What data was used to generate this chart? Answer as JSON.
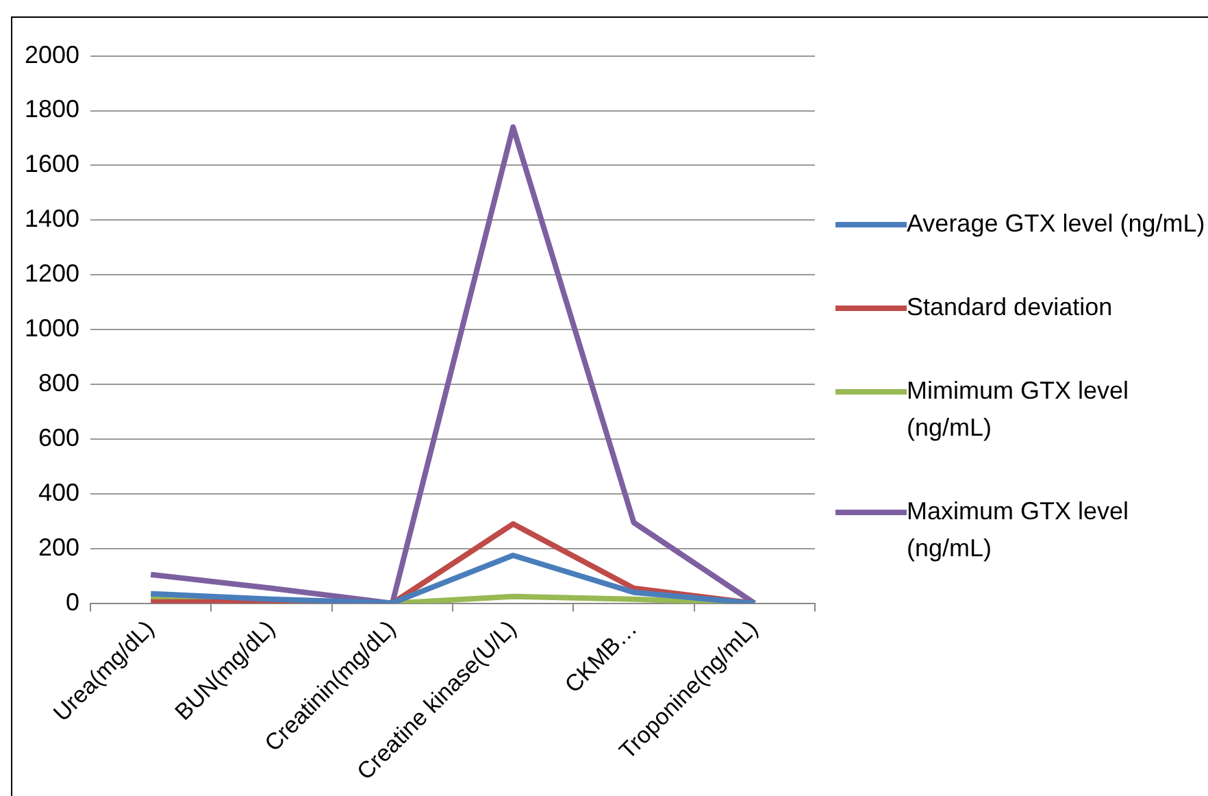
{
  "chart_data": {
    "type": "line",
    "categories": [
      "Urea(mg/dL)",
      "BUN(mg/dL)",
      "Creatinin(mg/dL)",
      "Creatine kinase(U/L)",
      "CKMB…",
      "Troponine(ng/mL)"
    ],
    "series": [
      {
        "name": "Average GTX level (ng/mL)",
        "color": "#4a7ebb",
        "values": [
          35,
          15,
          1,
          175,
          40,
          0
        ]
      },
      {
        "name": "Standard deviation",
        "color": "#be4b48",
        "values": [
          5,
          5,
          0,
          290,
          55,
          0
        ]
      },
      {
        "name": "Mimimum GTX level (ng/mL)",
        "color": "#98b954",
        "values": [
          20,
          10,
          0,
          25,
          15,
          0
        ]
      },
      {
        "name": "Maximum GTX level (ng/mL)",
        "color": "#7d60a0",
        "values": [
          105,
          55,
          0,
          1740,
          295,
          0
        ]
      }
    ],
    "ylim": [
      0,
      2000
    ],
    "yticks": [
      0,
      200,
      400,
      600,
      800,
      1000,
      1200,
      1400,
      1600,
      1800,
      2000
    ],
    "grid": "y",
    "legend": "right",
    "marker": "none",
    "line_style": "solid"
  }
}
